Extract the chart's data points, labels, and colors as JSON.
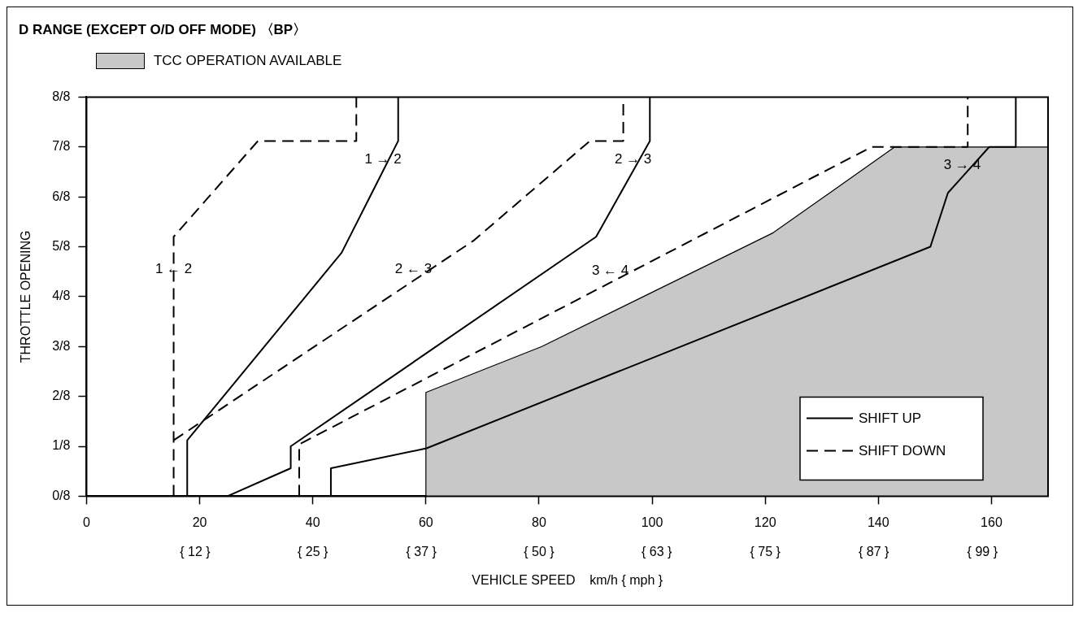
{
  "chart_data": {
    "type": "line",
    "title": "D RANGE (EXCEPT O/D OFF MODE) 〈BP〉",
    "xlabel": "VEHICLE SPEED    km/h { mph }",
    "ylabel": "THROTTLE OPENING",
    "xlim": [
      0,
      170
    ],
    "xticks": [
      0,
      20,
      40,
      60,
      80,
      100,
      120,
      140,
      160
    ],
    "x2lim": [
      0,
      106.25
    ],
    "x2ticks": [
      {
        "value": 12,
        "label": "{ 12 }"
      },
      {
        "value": 25,
        "label": "{ 25 }"
      },
      {
        "value": 37,
        "label": "{ 37 }"
      },
      {
        "value": 50,
        "label": "{ 50 }"
      },
      {
        "value": 63,
        "label": "{ 63 }"
      },
      {
        "value": 75,
        "label": "{ 75 }"
      },
      {
        "value": 87,
        "label": "{ 87 }"
      },
      {
        "value": 99,
        "label": "{ 99 }"
      }
    ],
    "ylim": [
      0,
      1
    ],
    "yticks": [
      {
        "value": 0,
        "label": "0/8"
      },
      {
        "value": 0.125,
        "label": "1/8"
      },
      {
        "value": 0.25,
        "label": "2/8"
      },
      {
        "value": 0.375,
        "label": "3/8"
      },
      {
        "value": 0.5,
        "label": "4/8"
      },
      {
        "value": 0.625,
        "label": "5/8"
      },
      {
        "value": 0.75,
        "label": "6/8"
      },
      {
        "value": 0.875,
        "label": "7/8"
      },
      {
        "value": 1,
        "label": "8/8"
      }
    ],
    "legend": "bottom right",
    "marker": "none",
    "series": [
      {
        "type": "area",
        "color": "#c8c8c8",
        "x": [
          60,
          60,
          80.5,
          121.4,
          142.9,
          170
        ],
        "values": [
          0,
          0.26,
          0.375,
          0.66,
          0.875,
          0.875
        ]
      },
      {
        "name": "SHIFT UP",
        "color": "#000000",
        "line_style": "solid",
        "x": [
          17.8,
          17.8,
          45.1,
          52.42,
          55.1,
          55.1,
          null,
          24.9,
          36.1,
          36.1,
          90.1,
          96.63,
          99.6,
          99.6,
          null,
          43.2,
          43.2,
          60.1,
          149.2,
          152.3,
          154.84,
          159.6,
          164.3,
          164.3
        ],
        "values": [
          0,
          0.14,
          0.61,
          0.815,
          0.89,
          1,
          null,
          0,
          0.07,
          0.125,
          0.65,
          0.815,
          0.89,
          1,
          null,
          0,
          0.07,
          0.12,
          0.625,
          0.76,
          0.8,
          0.875,
          0.875,
          1
        ]
      },
      {
        "name": "SHIFT DOWN",
        "color": "#000000",
        "line_style": "dashed",
        "x": [
          15.4,
          15.4,
          15.4,
          30.3,
          47.7,
          47.7,
          null,
          15.4,
          57.8,
          68.4,
          89,
          94.9,
          94.9,
          null,
          37.6,
          37.6,
          92.6,
          138.8,
          155.8,
          155.8
        ],
        "values": [
          0,
          0.54,
          0.65,
          0.89,
          0.89,
          1,
          null,
          0.14,
          0.54,
          0.64,
          0.89,
          0.89,
          1,
          null,
          0,
          0.13,
          0.535,
          0.875,
          0.875,
          1
        ]
      }
    ],
    "annotations": [
      "TCC OPERATION AVAILABLE",
      {
        "text": "1 → 2",
        "x": 52.42,
        "y": 0.815
      },
      {
        "text": "1 ← 2",
        "x": 15.4,
        "y": 0.54
      },
      {
        "text": "2 ← 3",
        "x": 57.8,
        "y": 0.54
      },
      {
        "text": "2 → 3",
        "x": 96.63,
        "y": 0.815
      },
      {
        "text": "3 ← 4",
        "x": 92.6,
        "y": 0.535
      },
      {
        "text": "3 → 4",
        "x": 154.84,
        "y": 0.8
      }
    ]
  }
}
